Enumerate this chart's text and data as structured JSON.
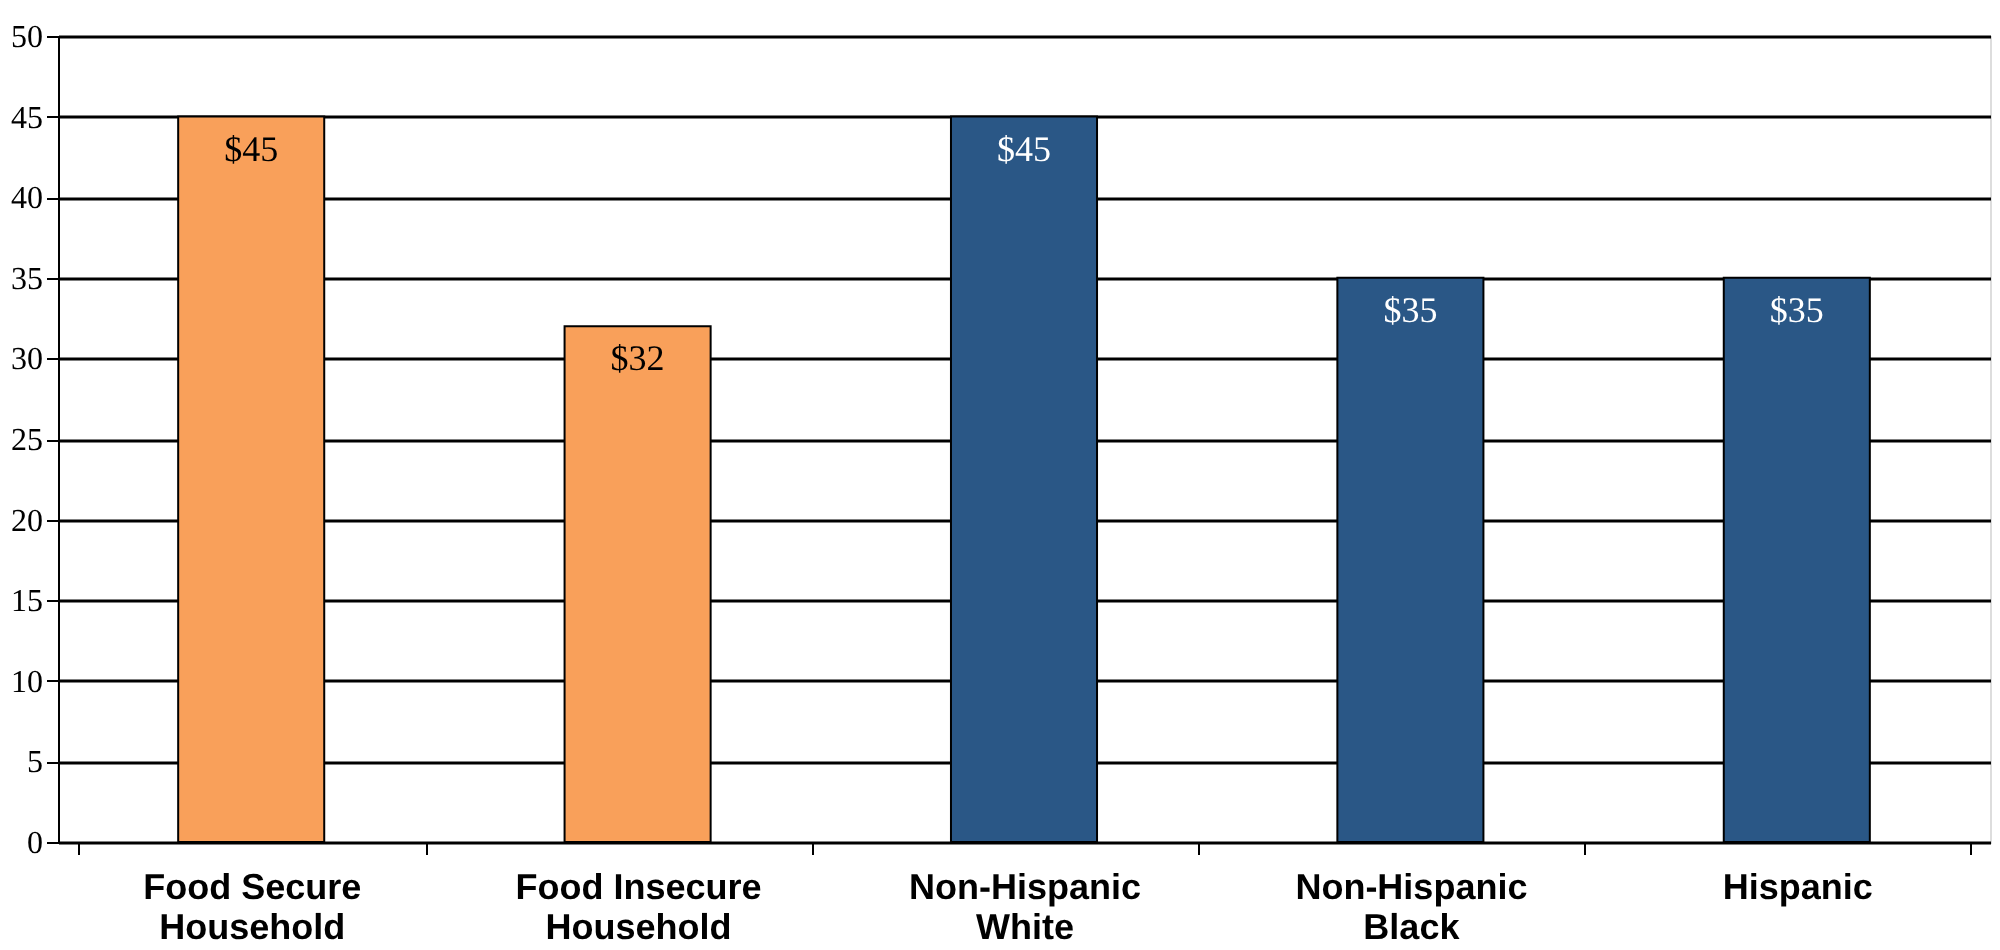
{
  "chart_data": {
    "type": "bar",
    "categories": [
      "Food Secure Household",
      "Food Insecure Household",
      "Non-Hispanic White",
      "Non-Hispanic Black",
      "Hispanic"
    ],
    "values": [
      45,
      32,
      45,
      35,
      35
    ],
    "colors": [
      "#f9a05a",
      "#f9a05a",
      "#2a5786",
      "#2a5786",
      "#2a5786"
    ],
    "value_labels": [
      "$45",
      "$32",
      "$45",
      "$35",
      "$35"
    ],
    "ylim": [
      0,
      50
    ],
    "yticks": [
      0,
      5,
      10,
      15,
      20,
      25,
      30,
      35,
      40,
      45,
      50
    ],
    "grid": "y"
  }
}
